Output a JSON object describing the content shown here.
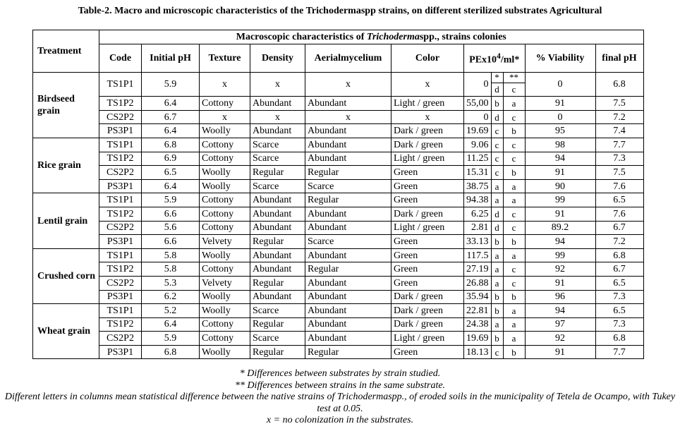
{
  "header": {
    "title": "Table-2. Macro and microscopic characteristics of the Trichodermaspp strains, on different sterilized substrates Agricultural"
  },
  "table": {
    "treatment_header": "Treatment",
    "group_header": [
      "Macroscopic characteristics of ",
      "Trichoderma",
      "spp., strains colonies"
    ],
    "columns": [
      "Code",
      "Initial pH",
      "Texture",
      "Density",
      "Aerialmycelium",
      "Color"
    ],
    "pe_header": [
      "PEx10",
      "4",
      "/ml*"
    ],
    "columns_after": [
      "% Viability",
      "final pH"
    ],
    "letter_headers": [
      "*",
      "**"
    ],
    "groups": [
      {
        "label": "Birdseed grain",
        "rows": [
          [
            "TS1P1",
            "5.9",
            "x",
            "x",
            "x",
            "x",
            "0",
            "d",
            "c",
            "0",
            "6.8"
          ],
          [
            "TS1P2",
            "6.4",
            "Cottony",
            "Abundant",
            "Abundant",
            "Light / green",
            "55,00",
            "b",
            "a",
            "91",
            "7.5"
          ],
          [
            "CS2P2",
            "6.7",
            "x",
            "x",
            "x",
            "x",
            "0",
            "d",
            "c",
            "0",
            "7.2"
          ],
          [
            "PS3P1",
            "6.4",
            "Woolly",
            "Abundant",
            "Abundant",
            "Dark / green",
            "19.69",
            "c",
            "b",
            "95",
            "7.4"
          ]
        ]
      },
      {
        "label": "Rice grain",
        "rows": [
          [
            "TS1P1",
            "6.8",
            "Cottony",
            "Scarce",
            "Abundant",
            "Dark / green",
            "9.06",
            "c",
            "c",
            "98",
            "7.7"
          ],
          [
            "TS1P2",
            "6.9",
            "Cottony",
            "Scarce",
            "Abundant",
            "Light / green",
            "11.25",
            "c",
            "c",
            "94",
            "7.3"
          ],
          [
            "CS2P2",
            "6.5",
            "Woolly",
            "Regular",
            "Regular",
            "Green",
            "15.31",
            "c",
            "b",
            "91",
            "7.5"
          ],
          [
            "PS3P1",
            "6.4",
            "Woolly",
            "Scarce",
            "Scarce",
            "Green",
            "38.75",
            "a",
            "a",
            "90",
            "7.6"
          ]
        ]
      },
      {
        "label": "Lentil grain",
        "rows": [
          [
            "TS1P1",
            "5.9",
            "Cottony",
            "Abundant",
            "Regular",
            "Green",
            "94.38",
            "a",
            "a",
            "99",
            "6.5"
          ],
          [
            "TS1P2",
            "6.6",
            "Cottony",
            "Abundant",
            "Abundant",
            "Dark / green",
            "6.25",
            "d",
            "c",
            "91",
            "7.6"
          ],
          [
            "CS2P2",
            "5.6",
            "Cottony",
            "Abundant",
            "Abundant",
            "Light / green",
            "2.81",
            "d",
            "c",
            "89.2",
            "6.7"
          ],
          [
            "PS3P1",
            "6.6",
            "Velvety",
            "Regular",
            "Scarce",
            "Green",
            "33.13",
            "b",
            "b",
            "94",
            "7.2"
          ]
        ]
      },
      {
        "label": "Crushed corn",
        "rows": [
          [
            "TS1P1",
            "5.8",
            "Woolly",
            "Abundant",
            "Abundant",
            "Green",
            "117.5",
            "a",
            "a",
            "99",
            "6.8"
          ],
          [
            "TS1P2",
            "5.8",
            "Cottony",
            "Abundant",
            "Regular",
            "Green",
            "27.19",
            "a",
            "c",
            "92",
            "6.7"
          ],
          [
            "CS2P2",
            "5.3",
            "Velvety",
            "Regular",
            "Abundant",
            "Green",
            "26.88",
            "a",
            "c",
            "91",
            "6.5"
          ],
          [
            "PS3P1",
            "6.2",
            "Woolly",
            "Abundant",
            "Abundant",
            "Dark / green",
            "35.94",
            "b",
            "b",
            "96",
            "7.3"
          ]
        ]
      },
      {
        "label": "Wheat grain",
        "rows": [
          [
            "TS1P1",
            "5.2",
            "Woolly",
            "Scarce",
            "Abundant",
            "Dark / green",
            "22.81",
            "b",
            "a",
            "94",
            "6.5"
          ],
          [
            "TS1P2",
            "6.4",
            "Cottony",
            "Regular",
            "Abundant",
            "Dark / green",
            "24.38",
            "a",
            "a",
            "97",
            "7.3"
          ],
          [
            "CS2P2",
            "5.9",
            "Cottony",
            "Scarce",
            "Abundant",
            "Light / green",
            "19.69",
            "b",
            "a",
            "92",
            "6.8"
          ],
          [
            "PS3P1",
            "6.8",
            "Woolly",
            "Regular",
            "Regular",
            "Green",
            "18.13",
            "c",
            "b",
            "91",
            "7.7"
          ]
        ]
      }
    ]
  },
  "footnotes": [
    "* Differences between substrates by strain studied.",
    "** Differences between strains in the same substrate.",
    "Different letters in columns mean statistical difference between the native strains of Trichodermaspp., of eroded soils in the municipality of Tetela de Ocampo, with Tukey test at 0.05.",
    "x = no colonization in the substrates."
  ]
}
